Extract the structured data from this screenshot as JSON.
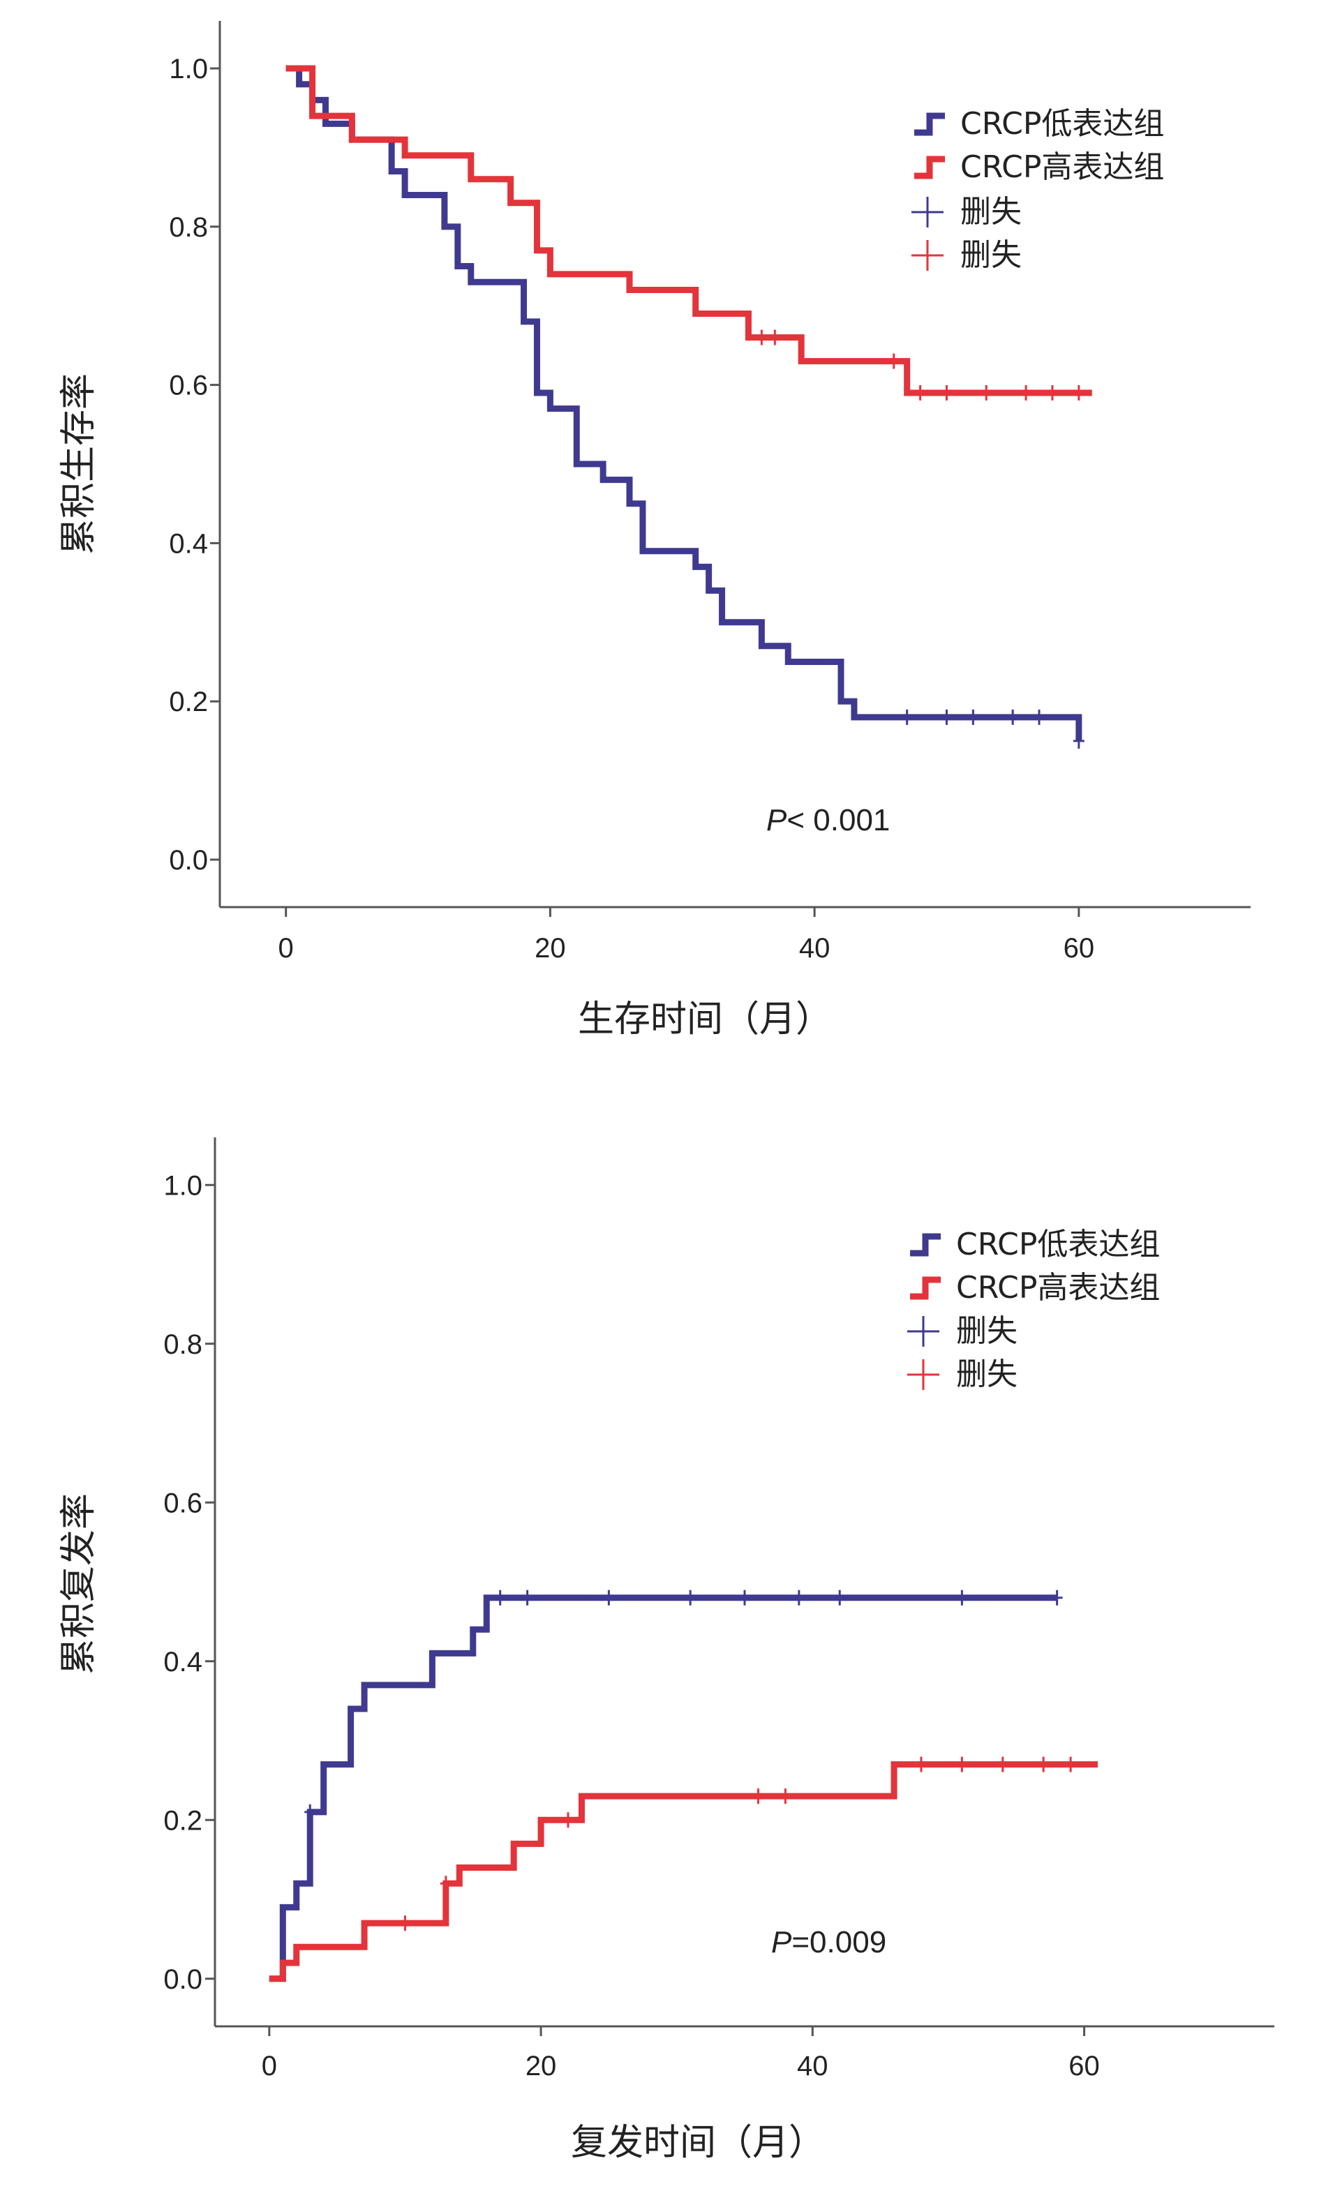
{
  "colors": {
    "low": "#3f3a8f",
    "high": "#e2343a",
    "axis": "#555555",
    "text": "#222222"
  },
  "chart_data": [
    {
      "type": "line",
      "step": true,
      "xlabel": "生存时间（月）",
      "ylabel": "累积生存率",
      "xlim": [
        -5,
        73
      ],
      "ylim": [
        -0.06,
        1.06
      ],
      "xticks": [
        "0",
        "20",
        "40",
        "60"
      ],
      "yticks": [
        "0.0",
        "0.2",
        "0.4",
        "0.6",
        "0.8",
        "1.0"
      ],
      "legend_position": "top-right",
      "legend": [
        "CRCP低表达组",
        "CRCP高表达组",
        "删失",
        "删失"
      ],
      "annotation": {
        "p_symbol": "P",
        "p_text": "< 0.001"
      },
      "series": [
        {
          "name": "CRCP低表达组",
          "color_key": "low",
          "x": [
            0,
            1,
            2,
            3,
            5,
            8,
            9,
            12,
            13,
            14,
            18,
            19,
            20,
            22,
            24,
            26,
            27,
            31,
            32,
            33,
            36,
            38,
            42,
            43,
            60
          ],
          "y": [
            1.0,
            0.98,
            0.96,
            0.93,
            0.91,
            0.87,
            0.84,
            0.8,
            0.75,
            0.73,
            0.68,
            0.59,
            0.57,
            0.5,
            0.48,
            0.45,
            0.39,
            0.37,
            0.34,
            0.3,
            0.27,
            0.25,
            0.2,
            0.18,
            0.15
          ],
          "censored_x": [
            47,
            50,
            52,
            55,
            57,
            60
          ]
        },
        {
          "name": "CRCP高表达组",
          "color_key": "high",
          "x": [
            0,
            2,
            5,
            9,
            14,
            17,
            19,
            20,
            26,
            31,
            35,
            39,
            47,
            61
          ],
          "y": [
            1.0,
            0.94,
            0.91,
            0.89,
            0.86,
            0.83,
            0.77,
            0.74,
            0.72,
            0.69,
            0.66,
            0.63,
            0.59,
            0.59
          ],
          "censored_x": [
            36,
            37,
            46,
            48,
            50,
            53,
            56,
            58,
            60
          ]
        }
      ]
    },
    {
      "type": "line",
      "step": true,
      "xlabel": "复发时间（月）",
      "ylabel": "累积复发率",
      "xlim": [
        -4,
        74
      ],
      "ylim": [
        -0.06,
        1.06
      ],
      "xticks": [
        "0",
        "20",
        "40",
        "60"
      ],
      "yticks": [
        "0.0",
        "0.2",
        "0.4",
        "0.6",
        "0.8",
        "1.0"
      ],
      "legend_position": "top-right",
      "legend": [
        "CRCP低表达组",
        "CRCP高表达组",
        "删失",
        "删失"
      ],
      "annotation": {
        "p_symbol": "P",
        "p_text": "=0.009"
      },
      "series": [
        {
          "name": "CRCP低表达组",
          "color_key": "low",
          "x": [
            0,
            1,
            2,
            3,
            4,
            6,
            7,
            12,
            15,
            16,
            58
          ],
          "y": [
            0.0,
            0.09,
            0.12,
            0.21,
            0.27,
            0.34,
            0.37,
            0.41,
            0.44,
            0.48,
            0.48
          ],
          "censored_x": [
            3,
            17,
            19,
            25,
            31,
            35,
            39,
            42,
            51,
            58
          ]
        },
        {
          "name": "CRCP高表达组",
          "color_key": "high",
          "x": [
            0,
            1,
            2,
            7,
            13,
            14,
            18,
            20,
            23,
            46,
            61
          ],
          "y": [
            0.0,
            0.02,
            0.04,
            0.07,
            0.12,
            0.14,
            0.17,
            0.2,
            0.23,
            0.27,
            0.27
          ],
          "censored_x": [
            10,
            13,
            22,
            36,
            38,
            48,
            51,
            54,
            57,
            59
          ]
        }
      ]
    }
  ]
}
